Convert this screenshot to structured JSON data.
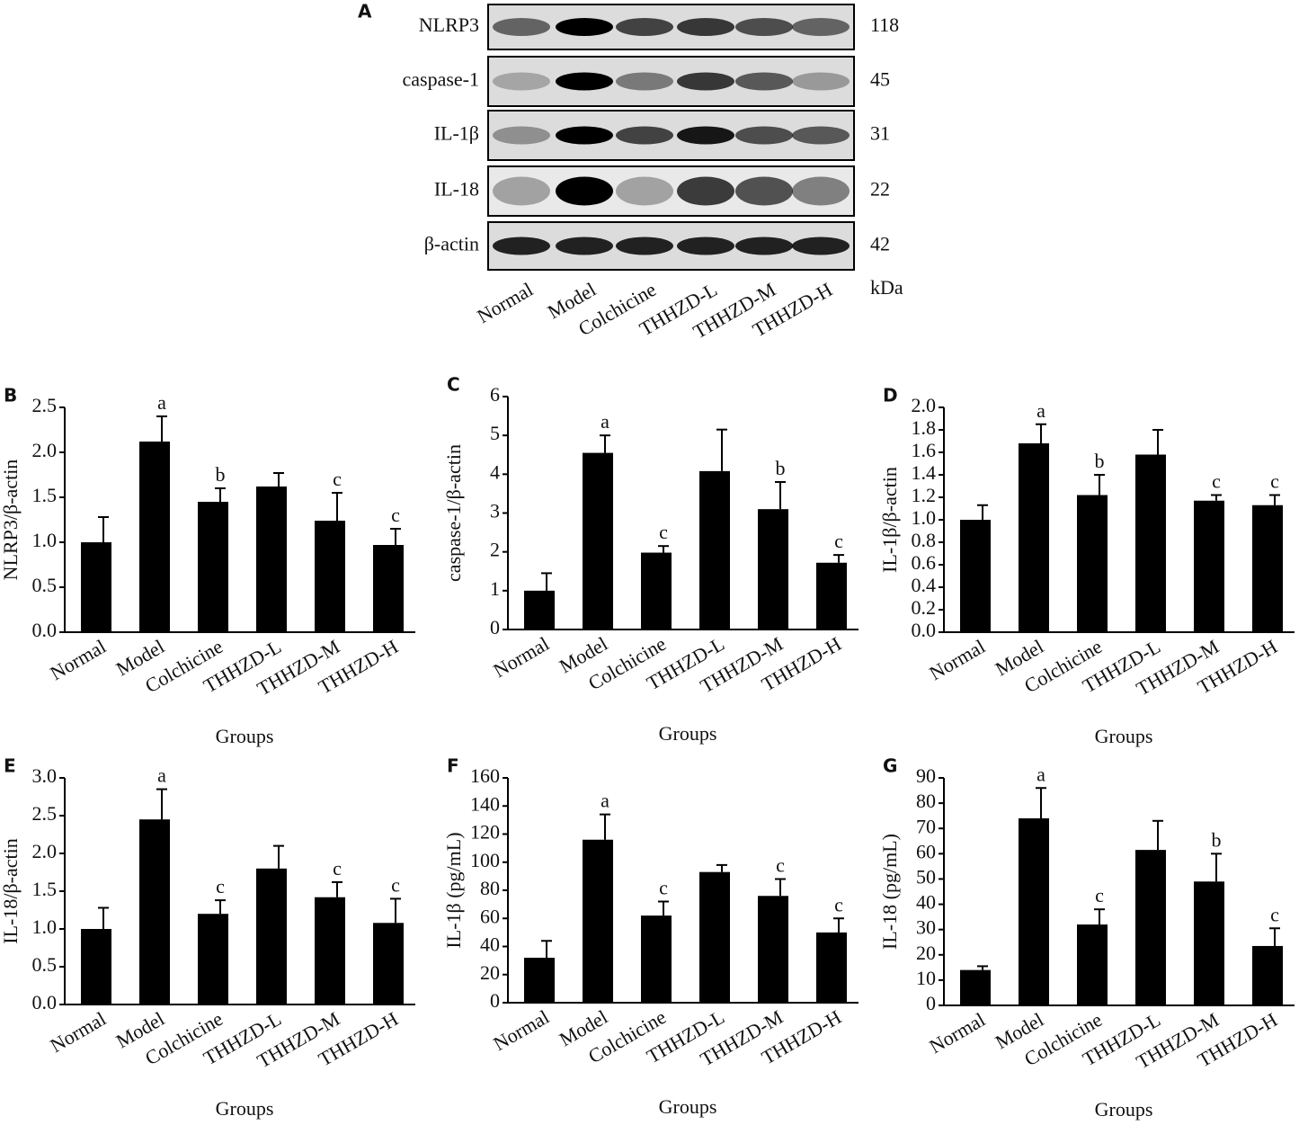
{
  "blot": {
    "panel": "A",
    "rows": [
      {
        "label": "NLRP3",
        "kda": 118
      },
      {
        "label": "caspase-1",
        "kda": 45
      },
      {
        "label": "IL-1β",
        "kda": 31
      },
      {
        "label": "IL-18",
        "kda": 22
      },
      {
        "label": "β-actin",
        "kda": 42
      }
    ],
    "lanes": [
      "Normal",
      "Model",
      "Colchicine",
      "THHZD-L",
      "THHZD-M",
      "THHZD-H"
    ],
    "unit": "kDa"
  },
  "chart_data": [
    {
      "type": "bar",
      "panel": "B",
      "y_label": "NLRP3/β-actin",
      "x_label": "Groups",
      "color": "#000000",
      "categories": [
        "Normal",
        "Model",
        "Colchicine",
        "THHZD-L",
        "THHZD-M",
        "THHZD-H"
      ],
      "values": [
        1.0,
        2.12,
        1.45,
        1.62,
        1.24,
        0.97
      ],
      "errors": [
        0.28,
        0.28,
        0.15,
        0.15,
        0.31,
        0.18
      ],
      "annotations": [
        null,
        "a",
        "b",
        null,
        "c",
        "c"
      ],
      "ylim": [
        0,
        2.5
      ],
      "yticks": [
        {
          "value": 0,
          "label": "0.0"
        },
        0.5,
        {
          "value": 1,
          "label": "1.0"
        },
        1.5,
        {
          "value": 2,
          "label": "2.0"
        },
        2.5
      ]
    },
    {
      "type": "bar",
      "panel": "C",
      "y_label": "caspase-1/β-actin",
      "x_label": "Groups",
      "color": "#000000",
      "categories": [
        "Normal",
        "Model",
        "Colchicine",
        "THHZD-L",
        "THHZD-M",
        "THHZD-H"
      ],
      "values": [
        1.0,
        4.55,
        1.98,
        4.08,
        3.1,
        1.72
      ],
      "errors": [
        0.45,
        0.45,
        0.17,
        1.07,
        0.7,
        0.2
      ],
      "annotations": [
        null,
        "a",
        "c",
        null,
        "b",
        "c"
      ],
      "ylim": [
        0,
        6
      ],
      "yticks": [
        0,
        1,
        2,
        3,
        4,
        5,
        6
      ]
    },
    {
      "type": "bar",
      "panel": "D",
      "y_label": "IL-1β/β-actin",
      "x_label": "Groups",
      "color": "#000000",
      "categories": [
        "Normal",
        "Model",
        "Colchicine",
        "THHZD-L",
        "THHZD-M",
        "THHZD-H"
      ],
      "values": [
        1.0,
        1.68,
        1.22,
        1.58,
        1.17,
        1.13
      ],
      "errors": [
        0.13,
        0.17,
        0.18,
        0.22,
        0.05,
        0.09
      ],
      "annotations": [
        null,
        "a",
        "b",
        null,
        "c",
        "c"
      ],
      "ylim": [
        0,
        2.0
      ],
      "yticks": [
        {
          "value": 0,
          "label": "0.0"
        },
        0.2,
        0.4,
        0.6,
        0.8,
        {
          "value": 1,
          "label": "1.0"
        },
        1.2,
        1.4,
        1.6,
        1.8,
        {
          "value": 2,
          "label": "2.0"
        }
      ]
    },
    {
      "type": "bar",
      "panel": "E",
      "y_label": "IL-18/β-actin",
      "x_label": "Groups",
      "color": "#000000",
      "categories": [
        "Normal",
        "Model",
        "Colchicine",
        "THHZD-L",
        "THHZD-M",
        "THHZD-H"
      ],
      "values": [
        1.0,
        2.45,
        1.2,
        1.8,
        1.42,
        1.08
      ],
      "errors": [
        0.28,
        0.4,
        0.18,
        0.3,
        0.2,
        0.32
      ],
      "annotations": [
        null,
        "a",
        "c",
        null,
        "c",
        "c"
      ],
      "ylim": [
        0,
        3.0
      ],
      "yticks": [
        {
          "value": 0,
          "label": "0.0"
        },
        0.5,
        {
          "value": 1,
          "label": "1.0"
        },
        1.5,
        {
          "value": 2,
          "label": "2.0"
        },
        2.5,
        {
          "value": 3,
          "label": "3.0"
        }
      ]
    },
    {
      "type": "bar",
      "panel": "F",
      "y_label": "IL-1β (pg/mL)",
      "x_label": "Groups",
      "color": "#000000",
      "categories": [
        "Normal",
        "Model",
        "Colchicine",
        "THHZD-L",
        "THHZD-M",
        "THHZD-H"
      ],
      "values": [
        32,
        116,
        62,
        93,
        76,
        50
      ],
      "errors": [
        12,
        18,
        10,
        5,
        12,
        10
      ],
      "annotations": [
        null,
        "a",
        "c",
        null,
        "c",
        "c"
      ],
      "ylim": [
        0,
        160
      ],
      "yticks": [
        0,
        20,
        40,
        60,
        80,
        100,
        120,
        140,
        160
      ]
    },
    {
      "type": "bar",
      "panel": "G",
      "y_label": "IL-18 (pg/mL)",
      "x_label": "Groups",
      "color": "#000000",
      "categories": [
        "Normal",
        "Model",
        "Colchicine",
        "THHZD-L",
        "THHZD-M",
        "THHZD-H"
      ],
      "values": [
        14,
        74,
        32,
        61.5,
        49,
        23.5
      ],
      "errors": [
        1.5,
        12,
        6,
        11.5,
        11,
        7
      ],
      "annotations": [
        null,
        "a",
        "c",
        null,
        "b",
        "c"
      ],
      "ylim": [
        0,
        90
      ],
      "yticks": [
        0,
        10,
        20,
        30,
        40,
        50,
        60,
        70,
        80,
        90
      ]
    }
  ]
}
